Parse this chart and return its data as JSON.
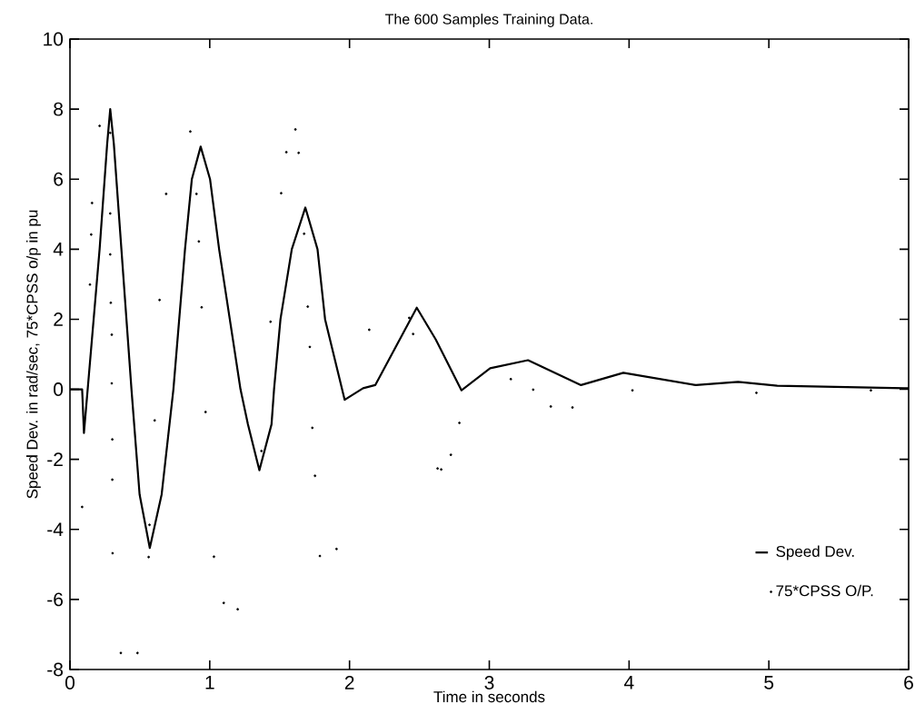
{
  "chart_data": {
    "type": "line",
    "title": "The 600 Samples Training Data.",
    "xlabel": "Time in seconds",
    "ylabel": "Speed Dev. in rad/sec, 75*CPSS o/p in pu",
    "xlim": [
      0,
      6
    ],
    "ylim": [
      -8,
      10
    ],
    "xticks": [
      0,
      1,
      2,
      3,
      4,
      5,
      6
    ],
    "yticks": [
      -8,
      -6,
      -4,
      -2,
      0,
      2,
      4,
      6,
      8,
      10
    ],
    "grid": false,
    "legend": "bottom right",
    "series": [
      {
        "name": "Speed Dev.",
        "color": "#000000",
        "marker": "none",
        "line_style": "solid",
        "x": [
          0,
          0.087,
          0.1,
          0.212,
          0.266,
          0.288,
          0.314,
          0.368,
          0.44,
          0.498,
          0.571,
          0.656,
          0.74,
          0.823,
          0.872,
          0.935,
          1.002,
          1.067,
          1.22,
          1.273,
          1.355,
          1.442,
          1.46,
          1.506,
          1.587,
          1.684,
          1.771,
          1.825,
          1.965,
          2.097,
          2.184,
          2.481,
          2.617,
          2.801,
          3.006,
          3.277,
          3.656,
          3.959,
          4.478,
          4.78,
          5.06,
          5.97,
          6.0
        ],
        "values": [
          0,
          0,
          -1.25,
          4,
          7,
          8.0,
          7,
          4,
          0,
          -3,
          -4.53,
          -3,
          0,
          4,
          6,
          6.93,
          6,
          4,
          0,
          -1,
          -2.31,
          -1,
          0,
          2,
          4,
          5.19,
          4,
          2,
          -0.3,
          0.03,
          0.12,
          2.33,
          1.42,
          -0.03,
          0.6,
          0.83,
          0.12,
          0.47,
          0.12,
          0.21,
          0.1,
          0.03,
          0.03
        ]
      },
      {
        "name": "75*CPSS O/P.",
        "type": "scatter",
        "color": "#000000",
        "marker": "circle",
        "x": [
          0.087,
          0.143,
          0.152,
          0.158,
          0.212,
          0.288,
          0.288,
          0.288,
          0.292,
          0.299,
          0.299,
          0.303,
          0.303,
          0.305,
          0.364,
          0.483,
          0.563,
          0.569,
          0.606,
          0.641,
          0.688,
          0.861,
          0.905,
          0.922,
          0.942,
          0.97,
          1.03,
          1.1,
          1.2,
          1.37,
          1.435,
          1.511,
          1.548,
          1.613,
          1.636,
          1.675,
          1.701,
          1.716,
          1.734,
          1.753,
          1.788,
          1.907,
          2.141,
          2.427,
          2.455,
          2.63,
          2.656,
          2.725,
          2.786,
          3.154,
          3.314,
          3.44,
          3.595,
          4.024,
          4.911,
          5.73
        ],
        "values": [
          -3.36,
          2.99,
          4.42,
          5.32,
          7.52,
          7.32,
          5.02,
          3.85,
          2.47,
          1.56,
          0.17,
          -1.43,
          -2.58,
          -4.68,
          -7.53,
          -7.53,
          -4.79,
          -3.87,
          -0.89,
          2.55,
          5.58,
          7.36,
          5.58,
          4.22,
          2.34,
          -0.65,
          -4.78,
          -6.1,
          -6.28,
          -1.76,
          1.93,
          5.6,
          6.77,
          7.42,
          6.75,
          4.44,
          2.36,
          1.21,
          -1.1,
          -2.47,
          -4.76,
          -4.56,
          1.7,
          2.04,
          1.58,
          -2.26,
          -2.29,
          -1.87,
          -0.96,
          0.29,
          -0.01,
          -0.49,
          -0.52,
          -0.03,
          -0.1,
          -0.03
        ]
      }
    ]
  }
}
